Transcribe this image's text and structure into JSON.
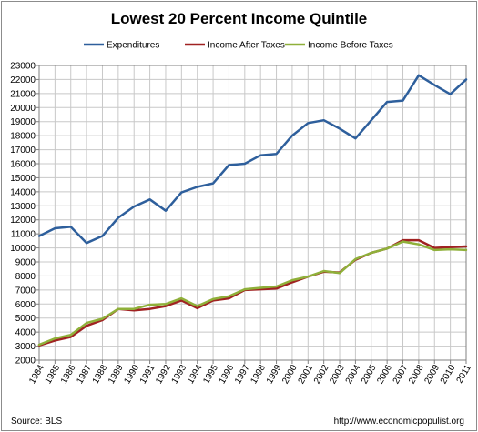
{
  "chart_data": {
    "type": "line",
    "title": "Lowest 20 Percent Income Quintile",
    "xlabel": "",
    "ylabel": "",
    "x": [
      "1984",
      "1985",
      "1986",
      "1987",
      "1988",
      "1989",
      "1990",
      "1991",
      "1992",
      "1993",
      "1994",
      "1995",
      "1996",
      "1997",
      "1998",
      "1999",
      "2000",
      "2001",
      "2002",
      "2003",
      "2004",
      "2005",
      "2006",
      "2007",
      "2008",
      "2009",
      "2010",
      "2011"
    ],
    "ylim": [
      2000,
      23000
    ],
    "yticks": [
      2000,
      3000,
      4000,
      5000,
      6000,
      7000,
      8000,
      9000,
      10000,
      11000,
      12000,
      13000,
      14000,
      15000,
      16000,
      17000,
      18000,
      19000,
      20000,
      21000,
      22000,
      23000
    ],
    "grid": true,
    "legend": "top",
    "series": [
      {
        "name": "Expenditures",
        "color": "#2e5f9c",
        "values": [
          10850,
          11400,
          11500,
          10350,
          10850,
          12150,
          12950,
          13450,
          12650,
          13950,
          14350,
          14600,
          15900,
          16000,
          16600,
          16700,
          18000,
          18900,
          19100,
          18500,
          17800,
          19100,
          20400,
          20500,
          22300,
          21600,
          20950,
          22000
        ]
      },
      {
        "name": "Income After Taxes",
        "color": "#a02222",
        "values": [
          3050,
          3400,
          3650,
          4450,
          4850,
          5650,
          5550,
          5650,
          5850,
          6250,
          5700,
          6250,
          6400,
          7000,
          7050,
          7100,
          7550,
          7950,
          8300,
          8250,
          9150,
          9650,
          9950,
          10550,
          10550,
          10000,
          10050,
          10100
        ]
      },
      {
        "name": "Income Before Taxes",
        "color": "#8fb03a",
        "values": [
          3100,
          3550,
          3800,
          4650,
          4950,
          5650,
          5650,
          5950,
          6000,
          6400,
          5850,
          6350,
          6550,
          7050,
          7150,
          7250,
          7700,
          7950,
          8350,
          8200,
          9200,
          9650,
          9950,
          10450,
          10250,
          9850,
          9900,
          9850
        ]
      }
    ]
  },
  "footer": {
    "source": "Source: BLS",
    "url": "http://www.economicpopulist.org"
  }
}
